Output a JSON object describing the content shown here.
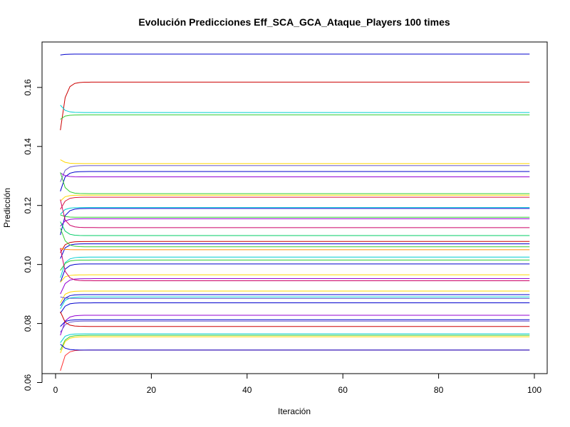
{
  "chart_data": {
    "type": "line",
    "title": "Evolución Predicciones Eff_SCA_GCA_Ataque_Players 100 times",
    "xlabel": "Iteración",
    "ylabel": "Predicción",
    "xlim": [
      1,
      99
    ],
    "ylim": [
      0.06,
      0.175
    ],
    "x_ticks": [
      0,
      20,
      40,
      60,
      80,
      100
    ],
    "y_ticks": [
      0.06,
      0.08,
      0.1,
      0.12,
      0.14,
      0.16
    ],
    "x_tick_labels": [
      "0",
      "20",
      "40",
      "60",
      "80",
      "100"
    ],
    "y_tick_labels": [
      "0.06",
      "0.08",
      "0.10",
      "0.12",
      "0.14",
      "0.16"
    ],
    "grid": false,
    "legend": "none",
    "n_iterations": 99,
    "series": [
      {
        "color": "#0000CD",
        "start": 0.171,
        "final": 0.1713
      },
      {
        "color": "#CC0000",
        "start": 0.1455,
        "final": 0.1618
      },
      {
        "color": "#00CED1",
        "start": 0.154,
        "final": 0.1515
      },
      {
        "color": "#32CD32",
        "start": 0.1492,
        "final": 0.1507
      },
      {
        "color": "#FFD700",
        "start": 0.1355,
        "final": 0.1342
      },
      {
        "color": "#6A5ACD",
        "start": 0.128,
        "final": 0.1335
      },
      {
        "color": "#0000CD",
        "start": 0.1248,
        "final": 0.1315
      },
      {
        "color": "#9400D3",
        "start": 0.131,
        "final": 0.1297
      },
      {
        "color": "#32CD32",
        "start": 0.1312,
        "final": 0.124
      },
      {
        "color": "#FFD700",
        "start": 0.1215,
        "final": 0.1235
      },
      {
        "color": "#DC143C",
        "start": 0.1187,
        "final": 0.1228
      },
      {
        "color": "#00CED1",
        "start": 0.117,
        "final": 0.1193
      },
      {
        "color": "#0000CD",
        "start": 0.11,
        "final": 0.119
      },
      {
        "color": "#32CD32",
        "start": 0.1168,
        "final": 0.116
      },
      {
        "color": "#9400D3",
        "start": 0.113,
        "final": 0.1155
      },
      {
        "color": "#CC0066",
        "start": 0.122,
        "final": 0.1125
      },
      {
        "color": "#00CC66",
        "start": 0.1145,
        "final": 0.1098
      },
      {
        "color": "#CC0000",
        "start": 0.104,
        "final": 0.1078
      },
      {
        "color": "#0000CD",
        "start": 0.102,
        "final": 0.107
      },
      {
        "color": "#32CD32",
        "start": 0.1123,
        "final": 0.106
      },
      {
        "color": "#FF8C00",
        "start": 0.1055,
        "final": 0.105
      },
      {
        "color": "#00CED1",
        "start": 0.0955,
        "final": 0.1025
      },
      {
        "color": "#32CD32",
        "start": 0.098,
        "final": 0.1015
      },
      {
        "color": "#0000CD",
        "start": 0.094,
        "final": 0.1002
      },
      {
        "color": "#FFD700",
        "start": 0.094,
        "final": 0.0965
      },
      {
        "color": "#9400D3",
        "start": 0.09,
        "final": 0.0952
      },
      {
        "color": "#CC0066",
        "start": 0.1055,
        "final": 0.0945
      },
      {
        "color": "#FFD700",
        "start": 0.087,
        "final": 0.091
      },
      {
        "color": "#0000CD",
        "start": 0.086,
        "final": 0.0898
      },
      {
        "color": "#00CED1",
        "start": 0.085,
        "final": 0.089
      },
      {
        "color": "#6A5ACD",
        "start": 0.089,
        "final": 0.0885
      },
      {
        "color": "#0000CD",
        "start": 0.0835,
        "final": 0.087
      },
      {
        "color": "#9400D3",
        "start": 0.076,
        "final": 0.0828
      },
      {
        "color": "#0000CD",
        "start": 0.079,
        "final": 0.0813
      },
      {
        "color": "#6A5ACD",
        "start": 0.077,
        "final": 0.0808
      },
      {
        "color": "#CC0000",
        "start": 0.084,
        "final": 0.079
      },
      {
        "color": "#00CED1",
        "start": 0.0735,
        "final": 0.0765
      },
      {
        "color": "#32CD32",
        "start": 0.071,
        "final": 0.076
      },
      {
        "color": "#FFD700",
        "start": 0.07,
        "final": 0.0755
      },
      {
        "color": "#FF3030",
        "start": 0.064,
        "final": 0.071
      },
      {
        "color": "#0000CD",
        "start": 0.073,
        "final": 0.071
      }
    ]
  }
}
